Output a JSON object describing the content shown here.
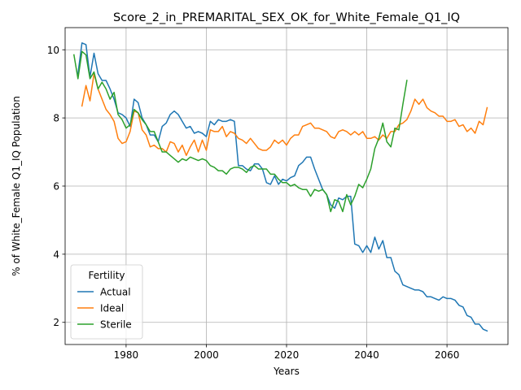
{
  "chart_data": {
    "type": "line",
    "title": "Score_2_in_PREMARITAL_SEX_OK_for_White_Female_Q1_IQ",
    "xlabel": "Years",
    "ylabel": "% of White_Female Q1_IQ Population",
    "xlim": [
      1964.8,
      2075.2
    ],
    "ylim": [
      1.35,
      10.65
    ],
    "xticks": [
      1980,
      2000,
      2020,
      2040,
      2060
    ],
    "yticks": [
      2,
      4,
      6,
      8,
      10
    ],
    "grid": true,
    "legend": {
      "title": "Fertility",
      "placement": "lower left"
    },
    "series": [
      {
        "name": "Actual",
        "color": "#1f77b4",
        "x": [
          1968,
          1969,
          1970,
          1971,
          1972,
          1973,
          1974,
          1975,
          1976,
          1977,
          1978,
          1979,
          1980,
          1981,
          1982,
          1983,
          1984,
          1985,
          1986,
          1987,
          1988,
          1989,
          1990,
          1991,
          1992,
          1993,
          1994,
          1995,
          1996,
          1997,
          1998,
          1999,
          2000,
          2001,
          2002,
          2003,
          2004,
          2005,
          2006,
          2007,
          2008,
          2009,
          2010,
          2011,
          2012,
          2013,
          2014,
          2015,
          2016,
          2017,
          2018,
          2019,
          2020,
          2021,
          2022,
          2023,
          2024,
          2025,
          2026,
          2027,
          2028,
          2029,
          2030,
          2031,
          2032,
          2033,
          2034,
          2035,
          2036,
          2037,
          2038,
          2039,
          2040,
          2041,
          2042,
          2043,
          2044,
          2045,
          2046,
          2047,
          2048,
          2049,
          2050,
          2051,
          2052,
          2053,
          2054,
          2055,
          2056,
          2057,
          2058,
          2059,
          2060,
          2061,
          2062,
          2063,
          2064,
          2065,
          2066,
          2067,
          2068,
          2069,
          2070
        ],
        "y": [
          9.3,
          10.2,
          10.15,
          9.2,
          9.9,
          9.3,
          9.1,
          9.1,
          8.85,
          8.55,
          8.15,
          8.1,
          8.0,
          7.75,
          8.55,
          8.45,
          8.0,
          7.8,
          7.5,
          7.5,
          7.3,
          7.75,
          7.85,
          8.1,
          8.2,
          8.1,
          7.9,
          7.7,
          7.75,
          7.55,
          7.6,
          7.55,
          7.45,
          7.9,
          7.8,
          7.95,
          7.9,
          7.9,
          7.95,
          7.9,
          6.6,
          6.6,
          6.5,
          6.45,
          6.65,
          6.65,
          6.5,
          6.1,
          6.05,
          6.3,
          6.05,
          6.2,
          6.15,
          6.25,
          6.3,
          6.6,
          6.7,
          6.85,
          6.85,
          6.5,
          6.2,
          5.9,
          5.75,
          5.45,
          5.35,
          5.65,
          5.6,
          5.7,
          5.7,
          4.3,
          4.25,
          4.05,
          4.25,
          4.05,
          4.5,
          4.15,
          4.4,
          3.9,
          3.9,
          3.5,
          3.4,
          3.1,
          3.05,
          3.0,
          2.95,
          2.95,
          2.9,
          2.75,
          2.75,
          2.7,
          2.65,
          2.75,
          2.7,
          2.7,
          2.65,
          2.5,
          2.45,
          2.2,
          2.15,
          1.95,
          1.95,
          1.8,
          1.75
        ]
      },
      {
        "name": "Ideal",
        "color": "#ff7f0e",
        "x": [
          1969,
          1970,
          1971,
          1972,
          1973,
          1974,
          1975,
          1976,
          1977,
          1978,
          1979,
          1980,
          1981,
          1982,
          1983,
          1984,
          1985,
          1986,
          1987,
          1988,
          1989,
          1990,
          1991,
          1992,
          1993,
          1994,
          1995,
          1996,
          1997,
          1998,
          1999,
          2000,
          2001,
          2002,
          2003,
          2004,
          2005,
          2006,
          2007,
          2008,
          2009,
          2010,
          2011,
          2012,
          2013,
          2014,
          2015,
          2016,
          2017,
          2018,
          2019,
          2020,
          2021,
          2022,
          2023,
          2024,
          2025,
          2026,
          2027,
          2028,
          2029,
          2030,
          2031,
          2032,
          2033,
          2034,
          2035,
          2036,
          2037,
          2038,
          2039,
          2040,
          2041,
          2042,
          2043,
          2044,
          2045,
          2046,
          2047,
          2048,
          2049,
          2050,
          2051,
          2052,
          2053,
          2054,
          2055,
          2056,
          2057,
          2058,
          2059,
          2060,
          2061,
          2062,
          2063,
          2064,
          2065,
          2066,
          2067,
          2068,
          2069,
          2070
        ],
        "y": [
          8.35,
          8.95,
          8.5,
          9.3,
          8.85,
          8.55,
          8.25,
          8.1,
          7.9,
          7.4,
          7.25,
          7.3,
          7.6,
          8.2,
          8.15,
          7.65,
          7.5,
          7.15,
          7.2,
          7.1,
          7.1,
          7.0,
          7.3,
          7.25,
          7.0,
          7.2,
          6.9,
          7.15,
          7.35,
          7.0,
          7.35,
          7.05,
          7.65,
          7.6,
          7.6,
          7.75,
          7.45,
          7.6,
          7.55,
          7.4,
          7.35,
          7.25,
          7.4,
          7.25,
          7.1,
          7.05,
          7.05,
          7.15,
          7.35,
          7.25,
          7.35,
          7.2,
          7.4,
          7.5,
          7.5,
          7.75,
          7.8,
          7.85,
          7.7,
          7.7,
          7.65,
          7.6,
          7.45,
          7.4,
          7.6,
          7.65,
          7.6,
          7.5,
          7.6,
          7.5,
          7.6,
          7.4,
          7.4,
          7.45,
          7.35,
          7.5,
          7.4,
          7.6,
          7.6,
          7.8,
          7.85,
          7.95,
          8.2,
          8.55,
          8.4,
          8.55,
          8.3,
          8.2,
          8.15,
          8.05,
          8.05,
          7.9,
          7.9,
          7.95,
          7.75,
          7.8,
          7.6,
          7.7,
          7.55,
          7.9,
          7.8,
          8.3
        ]
      },
      {
        "name": "Sterile",
        "color": "#2ca02c",
        "x": [
          1967,
          1968,
          1969,
          1970,
          1971,
          1972,
          1973,
          1974,
          1975,
          1976,
          1977,
          1978,
          1979,
          1980,
          1981,
          1982,
          1983,
          1984,
          1985,
          1986,
          1987,
          1988,
          1989,
          1990,
          1991,
          1992,
          1993,
          1994,
          1995,
          1996,
          1997,
          1998,
          1999,
          2000,
          2001,
          2002,
          2003,
          2004,
          2005,
          2006,
          2007,
          2008,
          2009,
          2010,
          2011,
          2012,
          2013,
          2014,
          2015,
          2016,
          2017,
          2018,
          2019,
          2020,
          2021,
          2022,
          2023,
          2024,
          2025,
          2026,
          2027,
          2028,
          2029,
          2030,
          2031,
          2032,
          2033,
          2034,
          2035,
          2036,
          2037,
          2038,
          2039,
          2040,
          2041,
          2042,
          2043,
          2044,
          2045,
          2046,
          2047,
          2048,
          2049,
          2050
        ],
        "y": [
          9.85,
          9.15,
          9.95,
          9.85,
          9.15,
          9.35,
          8.85,
          9.05,
          8.85,
          8.55,
          8.75,
          8.1,
          7.95,
          7.7,
          7.8,
          8.25,
          8.15,
          7.95,
          7.8,
          7.6,
          7.6,
          7.3,
          7.0,
          7.0,
          6.9,
          6.8,
          6.7,
          6.8,
          6.75,
          6.85,
          6.8,
          6.75,
          6.8,
          6.75,
          6.6,
          6.55,
          6.45,
          6.45,
          6.35,
          6.5,
          6.55,
          6.55,
          6.5,
          6.4,
          6.55,
          6.6,
          6.5,
          6.5,
          6.5,
          6.35,
          6.35,
          6.2,
          6.1,
          6.1,
          6.0,
          6.05,
          5.95,
          5.9,
          5.9,
          5.7,
          5.9,
          5.85,
          5.9,
          5.75,
          5.25,
          5.6,
          5.55,
          5.25,
          5.75,
          5.45,
          5.7,
          6.05,
          5.95,
          6.2,
          6.5,
          7.1,
          7.4,
          7.85,
          7.3,
          7.15,
          7.7,
          7.65,
          8.4,
          9.1
        ]
      }
    ]
  }
}
